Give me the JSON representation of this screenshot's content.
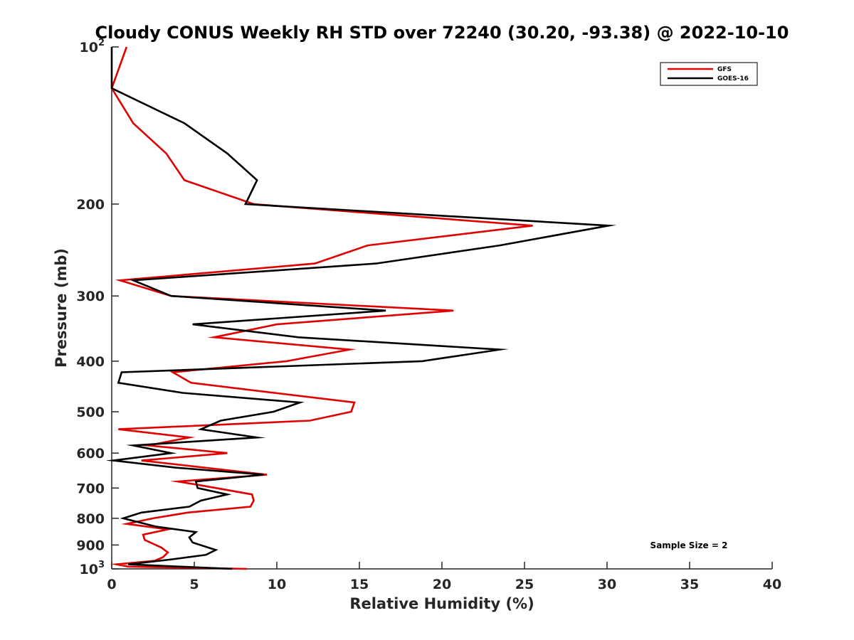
{
  "chart_data": {
    "type": "line",
    "title": "Cloudy CONUS Weekly RH STD over 72240 (30.20, -93.38) @ 2022-10-10",
    "xlabel": "Relative Humidity (%)",
    "ylabel": "Pressure (mb)",
    "xlim": [
      0,
      40
    ],
    "ylim": [
      100,
      1000
    ],
    "yscale": "log",
    "yreversed": true,
    "grid": false,
    "legend_position": "top-right",
    "xticks": [
      0,
      5,
      10,
      15,
      20,
      25,
      30,
      35,
      40
    ],
    "xtick_labels": [
      "0",
      "5",
      "10",
      "15",
      "20",
      "25",
      "30",
      "35",
      "40"
    ],
    "yticks": [
      100,
      200,
      300,
      400,
      500,
      600,
      700,
      800,
      900,
      1000
    ],
    "ytick_labels": [
      {
        "base": "10",
        "exp": "2"
      },
      {
        "base": "200"
      },
      {
        "base": "300"
      },
      {
        "base": "400"
      },
      {
        "base": "500"
      },
      {
        "base": "600"
      },
      {
        "base": "700"
      },
      {
        "base": "800"
      },
      {
        "base": "900"
      },
      {
        "base": "10",
        "exp": "3"
      }
    ],
    "annotation": "Sample Size = 2",
    "series": [
      {
        "name": "GFS",
        "color": "#e00000",
        "points": [
          [
            0.9,
            100
          ],
          [
            0.0,
            120
          ],
          [
            1.3,
            140
          ],
          [
            3.3,
            160
          ],
          [
            4.4,
            180
          ],
          [
            8.6,
            200
          ],
          [
            25.5,
            220
          ],
          [
            15.5,
            240
          ],
          [
            12.3,
            260
          ],
          [
            0.5,
            280
          ],
          [
            3.6,
            300
          ],
          [
            20.7,
            320
          ],
          [
            10.0,
            340
          ],
          [
            6.2,
            360
          ],
          [
            14.4,
            380
          ],
          [
            10.6,
            400
          ],
          [
            3.7,
            420
          ],
          [
            4.8,
            440
          ],
          [
            14.7,
            480
          ],
          [
            14.5,
            500
          ],
          [
            12.0,
            520
          ],
          [
            0.4,
            540
          ],
          [
            4.7,
            560
          ],
          [
            2.2,
            580
          ],
          [
            7.0,
            600
          ],
          [
            1.8,
            620
          ],
          [
            9.4,
            660
          ],
          [
            4.0,
            680
          ],
          [
            5.2,
            690
          ],
          [
            8.5,
            720
          ],
          [
            8.6,
            740
          ],
          [
            8.4,
            760
          ],
          [
            4.6,
            780
          ],
          [
            2.5,
            800
          ],
          [
            0.9,
            820
          ],
          [
            3.4,
            840
          ],
          [
            1.9,
            860
          ],
          [
            2.0,
            880
          ],
          [
            3.0,
            910
          ],
          [
            3.4,
            930
          ],
          [
            3.1,
            950
          ],
          [
            2.6,
            965
          ],
          [
            0.3,
            980
          ],
          [
            1.0,
            990
          ],
          [
            8.2,
            1000
          ]
        ]
      },
      {
        "name": "GOES-16",
        "color": "#000000",
        "points": [
          [
            0.0,
            100
          ],
          [
            0.0,
            120
          ],
          [
            4.4,
            140
          ],
          [
            7.0,
            160
          ],
          [
            8.8,
            180
          ],
          [
            8.1,
            200
          ],
          [
            30.1,
            220
          ],
          [
            23.5,
            240
          ],
          [
            16.0,
            260
          ],
          [
            1.3,
            280
          ],
          [
            3.6,
            300
          ],
          [
            16.6,
            320
          ],
          [
            4.9,
            340
          ],
          [
            11.3,
            360
          ],
          [
            23.5,
            380
          ],
          [
            18.8,
            400
          ],
          [
            0.6,
            420
          ],
          [
            0.4,
            440
          ],
          [
            4.3,
            460
          ],
          [
            11.4,
            480
          ],
          [
            9.8,
            500
          ],
          [
            6.6,
            520
          ],
          [
            5.4,
            540
          ],
          [
            8.8,
            560
          ],
          [
            1.3,
            580
          ],
          [
            3.6,
            600
          ],
          [
            0.1,
            620
          ],
          [
            3.9,
            640
          ],
          [
            9.2,
            660
          ],
          [
            5.1,
            680
          ],
          [
            5.2,
            700
          ],
          [
            7.0,
            720
          ],
          [
            5.4,
            740
          ],
          [
            4.7,
            760
          ],
          [
            1.8,
            780
          ],
          [
            0.7,
            800
          ],
          [
            2.7,
            830
          ],
          [
            5.1,
            850
          ],
          [
            4.7,
            870
          ],
          [
            4.9,
            890
          ],
          [
            6.3,
            920
          ],
          [
            5.7,
            940
          ],
          [
            3.5,
            960
          ],
          [
            1.0,
            980
          ],
          [
            7.3,
            1000
          ]
        ]
      }
    ]
  }
}
